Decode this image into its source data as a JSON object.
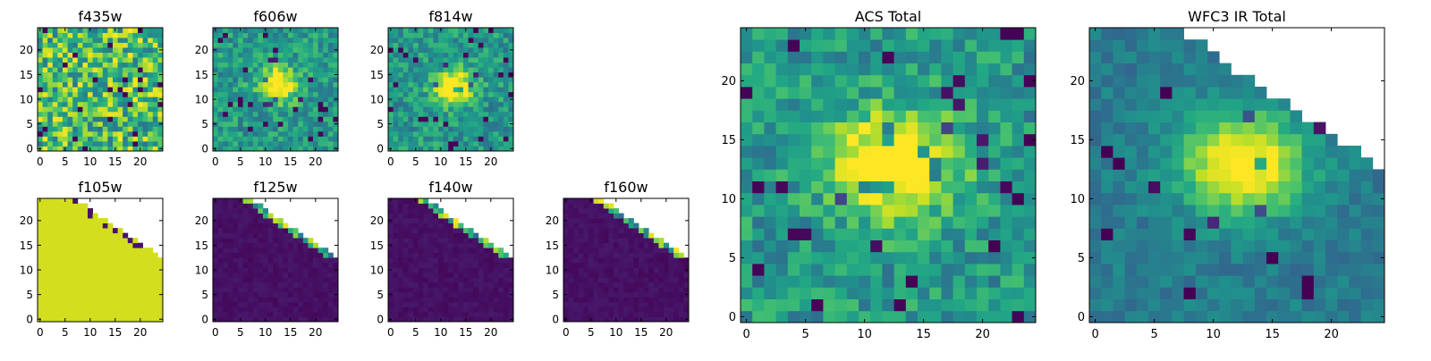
{
  "chart_data": [
    {
      "type": "heatmap",
      "title": "f435w",
      "xlabel": "",
      "ylabel": "",
      "xlim": [
        0,
        24
      ],
      "ylim": [
        0,
        24
      ],
      "xticks": [
        "0",
        "5",
        "10",
        "15",
        "20"
      ],
      "yticks": [
        "0",
        "5",
        "10",
        "15",
        "20"
      ],
      "colormap": "viridis",
      "pattern": "noise",
      "colors": {
        "low": "#440154",
        "high": "#fde725"
      }
    },
    {
      "type": "heatmap",
      "title": "f606w",
      "xlabel": "",
      "ylabel": "",
      "xlim": [
        0,
        24
      ],
      "ylim": [
        0,
        24
      ],
      "xticks": [
        "0",
        "5",
        "10",
        "15",
        "20"
      ],
      "yticks": [
        "0",
        "5",
        "10",
        "15",
        "20"
      ],
      "colormap": "viridis",
      "pattern": "source",
      "source_center": [
        12.5,
        13
      ],
      "colors": {
        "low": "#440154",
        "high": "#fde725"
      }
    },
    {
      "type": "heatmap",
      "title": "f814w",
      "xlabel": "",
      "ylabel": "",
      "xlim": [
        0,
        24
      ],
      "ylim": [
        0,
        24
      ],
      "xticks": [
        "0",
        "5",
        "10",
        "15",
        "20"
      ],
      "yticks": [
        "0",
        "5",
        "10",
        "15",
        "20"
      ],
      "colormap": "viridis",
      "pattern": "source",
      "source_center": [
        12.5,
        12.5
      ],
      "colors": {
        "low": "#440154",
        "high": "#fde725"
      }
    },
    {
      "type": "heatmap",
      "title": "f105w",
      "xlabel": "",
      "ylabel": "",
      "xlim": [
        0,
        24
      ],
      "ylim": [
        0,
        24
      ],
      "xticks": [
        "0",
        "5",
        "10",
        "15",
        "20"
      ],
      "yticks": [
        "0",
        "5",
        "10",
        "15",
        "20"
      ],
      "colormap": "viridis",
      "pattern": "flat-edge",
      "colors": {
        "low": "#440154",
        "high": "#fde725",
        "fill": "#d2de1e"
      }
    },
    {
      "type": "heatmap",
      "title": "f125w",
      "xlabel": "",
      "ylabel": "",
      "xlim": [
        0,
        24
      ],
      "ylim": [
        0,
        24
      ],
      "xticks": [
        "0",
        "5",
        "10",
        "15",
        "20"
      ],
      "yticks": [
        "0",
        "5",
        "10",
        "15",
        "20"
      ],
      "colormap": "viridis",
      "pattern": "dark-edge",
      "colors": {
        "low": "#440154",
        "high": "#fde725"
      }
    },
    {
      "type": "heatmap",
      "title": "f140w",
      "xlabel": "",
      "ylabel": "",
      "xlim": [
        0,
        24
      ],
      "ylim": [
        0,
        24
      ],
      "xticks": [
        "0",
        "5",
        "10",
        "15",
        "20"
      ],
      "yticks": [
        "0",
        "5",
        "10",
        "15",
        "20"
      ],
      "colormap": "viridis",
      "pattern": "dark-edge",
      "colors": {
        "low": "#440154",
        "high": "#fde725"
      }
    },
    {
      "type": "heatmap",
      "title": "f160w",
      "xlabel": "",
      "ylabel": "",
      "xlim": [
        0,
        24
      ],
      "ylim": [
        0,
        24
      ],
      "xticks": [
        "0",
        "5",
        "10",
        "15",
        "20"
      ],
      "yticks": [
        "0",
        "5",
        "10",
        "15",
        "20"
      ],
      "colormap": "viridis",
      "pattern": "dark-edge",
      "colors": {
        "low": "#440154",
        "high": "#fde725"
      }
    },
    {
      "type": "heatmap",
      "title": "ACS Total",
      "xlabel": "",
      "ylabel": "",
      "xlim": [
        0,
        24
      ],
      "ylim": [
        0,
        24
      ],
      "xticks": [
        "0",
        "5",
        "10",
        "15",
        "20"
      ],
      "yticks": [
        "0",
        "5",
        "10",
        "15",
        "20"
      ],
      "colormap": "viridis",
      "pattern": "source-bright",
      "source_center": [
        12.5,
        13
      ],
      "colors": {
        "low": "#440154",
        "high": "#fde725"
      }
    },
    {
      "type": "heatmap",
      "title": "WFC3 IR Total",
      "xlabel": "",
      "ylabel": "",
      "xlim": [
        0,
        24
      ],
      "ylim": [
        0,
        24
      ],
      "xticks": [
        "0",
        "5",
        "10",
        "15",
        "20"
      ],
      "yticks": [
        "0",
        "5",
        "10",
        "15",
        "20"
      ],
      "colormap": "viridis",
      "pattern": "source-masked",
      "source_center": [
        12.5,
        13
      ],
      "colors": {
        "low": "#440154",
        "high": "#fde725"
      }
    }
  ]
}
